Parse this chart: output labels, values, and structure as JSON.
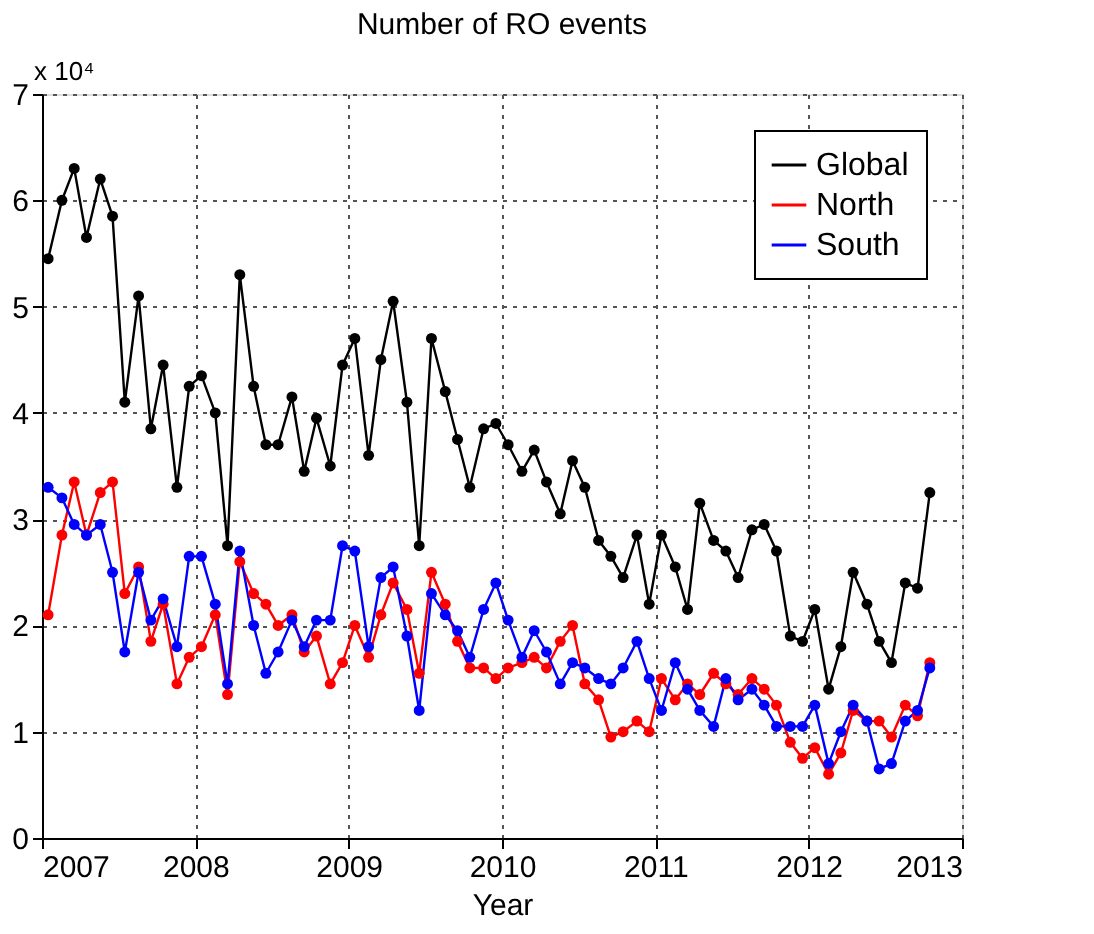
{
  "chart_data": {
    "type": "line",
    "title": "Number of RO events",
    "xlabel": "Year",
    "annotations": [
      "x 10⁴"
    ],
    "x": [
      2007.04,
      2007.13,
      2007.21,
      2007.29,
      2007.38,
      2007.46,
      2007.54,
      2007.63,
      2007.71,
      2007.79,
      2007.88,
      2007.96,
      2008.04,
      2008.13,
      2008.21,
      2008.29,
      2008.38,
      2008.46,
      2008.54,
      2008.63,
      2008.71,
      2008.79,
      2008.88,
      2008.96,
      2009.04,
      2009.13,
      2009.21,
      2009.29,
      2009.38,
      2009.46,
      2009.54,
      2009.63,
      2009.71,
      2009.79,
      2009.88,
      2009.96,
      2010.04,
      2010.13,
      2010.21,
      2010.29,
      2010.38,
      2010.46,
      2010.54,
      2010.63,
      2010.71,
      2010.79,
      2010.88,
      2010.96,
      2011.04,
      2011.13,
      2011.21,
      2011.29,
      2011.38,
      2011.46,
      2011.54,
      2011.63,
      2011.71,
      2011.79,
      2011.88,
      2011.96,
      2012.04,
      2012.13,
      2012.21,
      2012.29,
      2012.38,
      2012.46,
      2012.54,
      2012.63,
      2012.71,
      2012.79
    ],
    "series": [
      {
        "name": "Global",
        "color": "#000000",
        "values": [
          5.45,
          6.0,
          6.3,
          5.65,
          6.2,
          5.85,
          4.1,
          5.1,
          3.85,
          4.45,
          3.3,
          4.25,
          4.35,
          4.0,
          2.75,
          5.3,
          4.25,
          3.7,
          3.7,
          4.15,
          3.45,
          3.95,
          3.5,
          4.45,
          4.7,
          3.6,
          4.5,
          5.05,
          4.1,
          2.75,
          4.7,
          4.2,
          3.75,
          3.3,
          3.85,
          3.9,
          3.7,
          3.45,
          3.65,
          3.35,
          3.05,
          3.55,
          3.3,
          2.8,
          2.65,
          2.45,
          2.85,
          2.2,
          2.85,
          2.55,
          2.15,
          3.15,
          2.8,
          2.7,
          2.45,
          2.9,
          2.95,
          2.7,
          1.9,
          1.85,
          2.15,
          1.4,
          1.8,
          2.5,
          2.2,
          1.85,
          1.65,
          2.4,
          2.35,
          3.25
        ]
      },
      {
        "name": "North",
        "color": "#ff0000",
        "values": [
          2.1,
          2.85,
          3.35,
          2.85,
          3.25,
          3.35,
          2.3,
          2.55,
          1.85,
          2.2,
          1.45,
          1.7,
          1.8,
          2.1,
          1.35,
          2.6,
          2.3,
          2.2,
          2.0,
          2.1,
          1.75,
          1.9,
          1.45,
          1.65,
          2.0,
          1.7,
          2.1,
          2.4,
          2.15,
          1.55,
          2.5,
          2.2,
          1.85,
          1.6,
          1.6,
          1.5,
          1.6,
          1.65,
          1.7,
          1.6,
          1.85,
          2.0,
          1.45,
          1.3,
          0.95,
          1.0,
          1.1,
          1.0,
          1.5,
          1.3,
          1.45,
          1.35,
          1.55,
          1.45,
          1.35,
          1.5,
          1.4,
          1.25,
          0.9,
          0.75,
          0.85,
          0.6,
          0.8,
          1.2,
          1.1,
          1.1,
          0.95,
          1.25,
          1.15,
          1.65
        ]
      },
      {
        "name": "South",
        "color": "#0000ff",
        "values": [
          3.3,
          3.2,
          2.95,
          2.85,
          2.95,
          2.5,
          1.75,
          2.5,
          2.05,
          2.25,
          1.8,
          2.65,
          2.65,
          2.2,
          1.45,
          2.7,
          2.0,
          1.55,
          1.75,
          2.05,
          1.8,
          2.05,
          2.05,
          2.75,
          2.7,
          1.8,
          2.45,
          2.55,
          1.9,
          1.2,
          2.3,
          2.1,
          1.95,
          1.7,
          2.15,
          2.4,
          2.05,
          1.7,
          1.95,
          1.75,
          1.45,
          1.65,
          1.6,
          1.5,
          1.45,
          1.6,
          1.85,
          1.5,
          1.2,
          1.65,
          1.4,
          1.2,
          1.05,
          1.5,
          1.3,
          1.4,
          1.25,
          1.05,
          1.05,
          1.05,
          1.25,
          0.7,
          1.0,
          1.25,
          1.1,
          0.65,
          0.7,
          1.1,
          1.2,
          1.6
        ]
      }
    ],
    "xlim": [
      2007,
      2013
    ],
    "xticks": [
      2007,
      2008,
      2009,
      2010,
      2011,
      2012,
      2013
    ],
    "ylim": [
      0,
      7
    ],
    "yticks": [
      0,
      1,
      2,
      3,
      4,
      5,
      6,
      7
    ],
    "grid": true,
    "legend": "top right",
    "marker": "circle",
    "line_style": "solid"
  }
}
